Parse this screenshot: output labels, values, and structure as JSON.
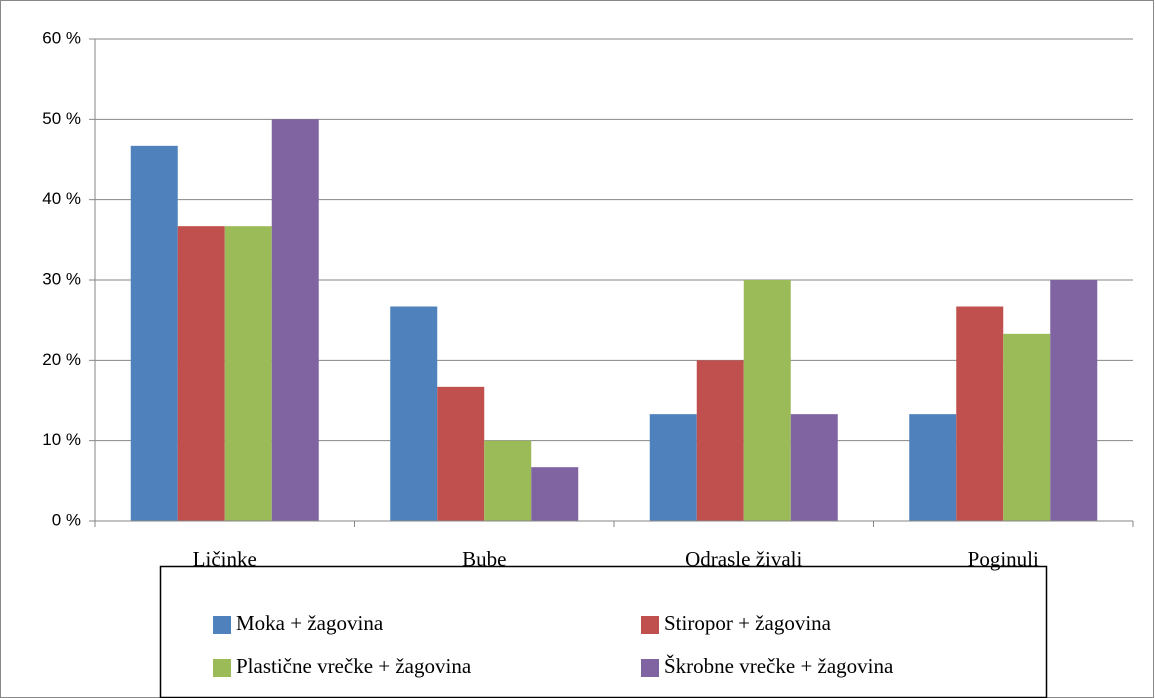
{
  "chart_data": {
    "type": "bar",
    "categories": [
      "Ličinke",
      "Bube",
      "Odrasle živali",
      "Poginuli"
    ],
    "series": [
      {
        "name": "Moka + žagovina",
        "color": "#4f81bd",
        "values": [
          46.7,
          26.7,
          13.3,
          13.3
        ]
      },
      {
        "name": "Stiropor + žagovina",
        "color": "#c0504d",
        "values": [
          36.7,
          16.7,
          20,
          26.7
        ]
      },
      {
        "name": "Plastične vrečke + žagovina",
        "color": "#9bbb59",
        "values": [
          36.7,
          10,
          30,
          23.3
        ]
      },
      {
        "name": "Škrobne vrečke + žagovina",
        "color": "#8064a2",
        "values": [
          50,
          6.7,
          13.3,
          30
        ]
      }
    ],
    "ylim": [
      0,
      60
    ],
    "yticks": [
      {
        "value": 0,
        "label": "0 %"
      },
      {
        "value": 10,
        "label": "10 %"
      },
      {
        "value": 20,
        "label": "20 %"
      },
      {
        "value": 30,
        "label": "30 %"
      },
      {
        "value": 40,
        "label": "40 %"
      },
      {
        "value": 50,
        "label": "50 %"
      },
      {
        "value": 60,
        "label": "60 %"
      }
    ],
    "grid": true,
    "legend": "bottom"
  }
}
